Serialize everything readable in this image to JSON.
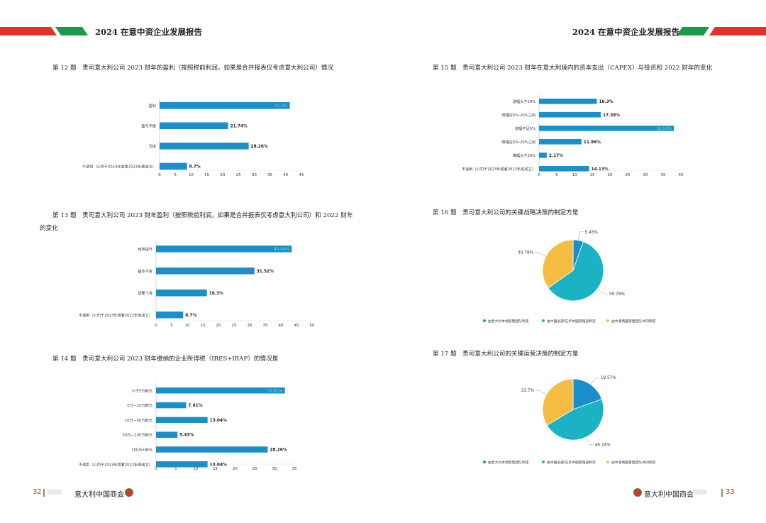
{
  "header": {
    "title_left": "2024 在意中资企业发展报告",
    "title_right": "2024 在意中资企业发展报告",
    "colors": {
      "red": "#e4322b",
      "green": "#1a9b4b"
    }
  },
  "footer": {
    "page_left": "32",
    "page_right": "33",
    "org_left": "意大利中国商会",
    "org_right": "意大利中国商会",
    "slashes": "//////////"
  },
  "questions": {
    "q12": "第 12 题　贵司意大利公司 2023 财年的盈利（按照税前利润，如果是合并报表仅考虑意大利公司）情况",
    "q13": "第 13 题　贵司意大利公司 2023 财年盈利（按照税前利润，如果是合并报表仅考虑意大利公司）和 2022 财年的变化",
    "q14": "第 14 题　贵司意大利公司 2023 财年缴纳的企业所得税（IRES+IRAP）的情况是",
    "q15": "第 15 题　贵司意大利公司 2023 财年在意大利境内的资本支出（CAPEX）与投资和 2022 财年的变化",
    "q16": "第 16 题　贵司意大利公司的关键战略决策的制定方是",
    "q17": "第 17 题　贵司意大利公司的关键运营决策的制定方是"
  },
  "chart_data": [
    {
      "id": "q12",
      "type": "bar",
      "orientation": "horizontal",
      "categories": [
        "盈利",
        "盈亏平衡",
        "亏损",
        "不适用（公司于2023年或者2023年底成立）"
      ],
      "values": [
        41.3,
        21.74,
        28.26,
        8.7
      ],
      "labels": [
        "41.3%",
        "21.74%",
        "28.26%",
        "8.7%"
      ],
      "ticks": [
        "0",
        "5",
        "10",
        "15",
        "20",
        "25",
        "30",
        "35",
        "40",
        "45"
      ],
      "xlim": [
        0,
        45
      ],
      "color": "#1a8fc9"
    },
    {
      "id": "q13",
      "type": "bar",
      "orientation": "horizontal",
      "categories": [
        "有所提升",
        "基本不变",
        "显著下滑",
        "不适用（公司于2023年或者2022年底成立）"
      ],
      "values": [
        43.48,
        31.52,
        16.3,
        8.7
      ],
      "labels": [
        "43.48%",
        "31.52%",
        "16.3%",
        "8.7%"
      ],
      "ticks": [
        "0",
        "5",
        "10",
        "15",
        "20",
        "25",
        "30",
        "35",
        "40",
        "45",
        "50"
      ],
      "xlim": [
        0,
        50
      ],
      "color": "#1a8fc9"
    },
    {
      "id": "q14",
      "type": "bar",
      "orientation": "horizontal",
      "categories": [
        "小于5万欧元",
        "5万—10万欧元",
        "10万—50万欧元",
        "50万—100万欧元",
        "100万+欧元",
        "不适用（公司于2023年或者2022年底成立）"
      ],
      "values": [
        32.61,
        7.61,
        13.04,
        5.43,
        28.26,
        13.04
      ],
      "labels": [
        "32.61%",
        "7.61%",
        "13.04%",
        "5.43%",
        "28.26%",
        "13.04%"
      ],
      "ticks": [
        "0",
        "5",
        "10",
        "15",
        "20",
        "25",
        "30",
        "35"
      ],
      "xlim": [
        0,
        35
      ],
      "color": "#1a8fc9"
    },
    {
      "id": "q15",
      "type": "bar",
      "orientation": "horizontal",
      "categories": [
        "增幅大于20%",
        "增幅在5%-20%之间",
        "增幅不足5%",
        "降幅在5%-20%之间",
        "降幅大于20%",
        "不适用（公司于2023年或者2022年底成立）"
      ],
      "values": [
        16.3,
        17.39,
        38.04,
        11.96,
        2.17,
        14.13
      ],
      "labels": [
        "16.3%",
        "17.39%",
        "38.04%",
        "11.96%",
        "2.17%",
        "14.13%"
      ],
      "ticks": [
        "0",
        "5",
        "10",
        "15",
        "20",
        "25",
        "30",
        "35",
        "40"
      ],
      "xlim": [
        0,
        40
      ],
      "color": "#1a8fc9"
    },
    {
      "id": "q16",
      "type": "pie",
      "slices": [
        {
          "name": "由意大利本地管理团队制定",
          "value": 5.43,
          "label": "5.43%",
          "color": "#1a8fc9"
        },
        {
          "name": "由中国总部/在华中国管理层制定",
          "value": 59.78,
          "label": "59.78%",
          "color": "#1bb3c4"
        },
        {
          "name": "由中意两国管理团队共同制定",
          "value": 34.78,
          "label": "34.78%",
          "color": "#f6bc42"
        }
      ]
    },
    {
      "id": "q17",
      "type": "pie",
      "slices": [
        {
          "name": "由意大利本地管理团队制定",
          "value": 19.57,
          "label": "19.57%",
          "color": "#1a8fc9"
        },
        {
          "name": "由中国总部/在华中国管理层制定",
          "value": 46.74,
          "label": "46.74%",
          "color": "#1bb3c4"
        },
        {
          "name": "由中意两国管理团队共同制定",
          "value": 33.7,
          "label": "33.7%",
          "color": "#f6bc42"
        }
      ]
    }
  ]
}
